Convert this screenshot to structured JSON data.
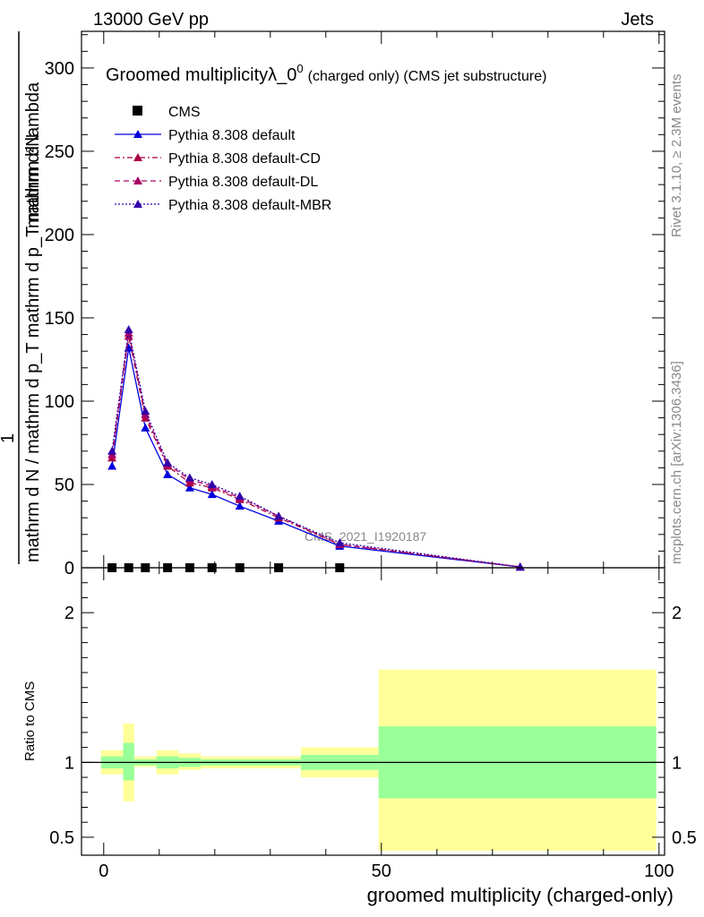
{
  "header": {
    "left": "13000 GeV pp",
    "right": "Jets"
  },
  "side_labels": {
    "rivet": "Rivet 3.1.10, ≥ 2.3M events",
    "mcplots": "mcplots.cern.ch [arXiv:1306.3436]"
  },
  "watermark": "CMS_2021_I1920187",
  "colors": {
    "cms": "#000000",
    "default": "#0000dd",
    "default_cd": "#aa0044",
    "default_dl": "#aa0066",
    "default_mbr": "#3300aa",
    "band_inner": "#99ff99",
    "band_outer": "#ffff99"
  },
  "chart_data": [
    {
      "type": "line",
      "title": {
        "main": "Groomed multiplicityλ_0",
        "sup": "0",
        "small": "(charged only) (CMS jet substructure)"
      },
      "ylabel": {
        "numer": "mathrm d²N",
        "one": "1",
        "denom": "mathrm d N / mathrm d p_T mathrm d p_T mathrm d lambda"
      },
      "xlabel": "groomed multiplicity (charged-only)",
      "xlim": [
        -4,
        101
      ],
      "ylim": [
        0,
        322
      ],
      "yticks": [
        0,
        50,
        100,
        150,
        200,
        250,
        300
      ],
      "xticks": [
        0,
        50,
        100
      ],
      "legend": {
        "position": "top-left",
        "entries": [
          "CMS",
          "Pythia 8.308 default",
          "Pythia 8.308 default-CD",
          "Pythia 8.308 default-DL",
          "Pythia 8.308 default-MBR"
        ]
      },
      "series": [
        {
          "name": "CMS",
          "style": "square",
          "x": [
            1.5,
            4.5,
            7.5,
            11.5,
            15.5,
            19.5,
            24.5,
            31.5,
            42.5
          ],
          "y": [
            0,
            0,
            0,
            0,
            0,
            0,
            0,
            0,
            0
          ]
        },
        {
          "name": "Pythia 8.308 default",
          "style": "solid",
          "x": [
            1.5,
            4.5,
            7.5,
            11.5,
            15.5,
            19.5,
            24.5,
            31.5,
            42.5,
            75
          ],
          "y": [
            61,
            132,
            84,
            56,
            48,
            44,
            37,
            28,
            13,
            0.5
          ]
        },
        {
          "name": "Pythia 8.308 default-CD",
          "style": "dashdot",
          "x": [
            1.5,
            4.5,
            7.5,
            11.5,
            15.5,
            19.5,
            24.5,
            31.5,
            42.5,
            75
          ],
          "y": [
            66,
            139,
            90,
            61,
            51,
            48,
            41,
            30,
            14,
            0.5
          ]
        },
        {
          "name": "Pythia 8.308 default-DL",
          "style": "dashed",
          "x": [
            1.5,
            4.5,
            7.5,
            11.5,
            15.5,
            19.5,
            24.5,
            31.5,
            42.5,
            75
          ],
          "y": [
            68,
            141,
            92,
            62,
            53,
            49,
            42,
            31,
            14,
            0.5
          ]
        },
        {
          "name": "Pythia 8.308 default-MBR",
          "style": "dotted",
          "x": [
            1.5,
            4.5,
            7.5,
            11.5,
            15.5,
            19.5,
            24.5,
            31.5,
            42.5,
            75
          ],
          "y": [
            70,
            143,
            94,
            63,
            54,
            50,
            43,
            31,
            15,
            0.5
          ]
        }
      ]
    },
    {
      "type": "area",
      "ylabel": "Ratio to CMS",
      "xlim": [
        -4,
        101
      ],
      "ylim": [
        0.38,
        2.3
      ],
      "yticks": [
        0.5,
        1,
        2
      ],
      "ytick_labels": [
        "0.5",
        "1",
        "2"
      ],
      "xticks": [
        0,
        50,
        100
      ],
      "xtick_labels": [
        "0",
        "50",
        "100"
      ],
      "reference_line": 1,
      "bins": [
        {
          "lo": -0.5,
          "hi": 3.5,
          "inner": [
            0.96,
            1.04
          ],
          "outer": [
            0.92,
            1.08
          ]
        },
        {
          "lo": 3.5,
          "hi": 5.5,
          "inner": [
            0.88,
            1.13
          ],
          "outer": [
            0.74,
            1.26
          ]
        },
        {
          "lo": 5.5,
          "hi": 9.5,
          "inner": [
            0.98,
            1.02
          ],
          "outer": [
            0.97,
            1.04
          ]
        },
        {
          "lo": 9.5,
          "hi": 13.5,
          "inner": [
            0.96,
            1.04
          ],
          "outer": [
            0.92,
            1.08
          ]
        },
        {
          "lo": 13.5,
          "hi": 17.5,
          "inner": [
            0.97,
            1.03
          ],
          "outer": [
            0.95,
            1.06
          ]
        },
        {
          "lo": 17.5,
          "hi": 35.5,
          "inner": [
            0.98,
            1.02
          ],
          "outer": [
            0.96,
            1.04
          ]
        },
        {
          "lo": 35.5,
          "hi": 49.5,
          "inner": [
            0.95,
            1.05
          ],
          "outer": [
            0.9,
            1.1
          ]
        },
        {
          "lo": 49.5,
          "hi": 99.5,
          "inner": [
            0.76,
            1.24
          ],
          "outer": [
            0.41,
            1.62
          ]
        }
      ]
    }
  ]
}
